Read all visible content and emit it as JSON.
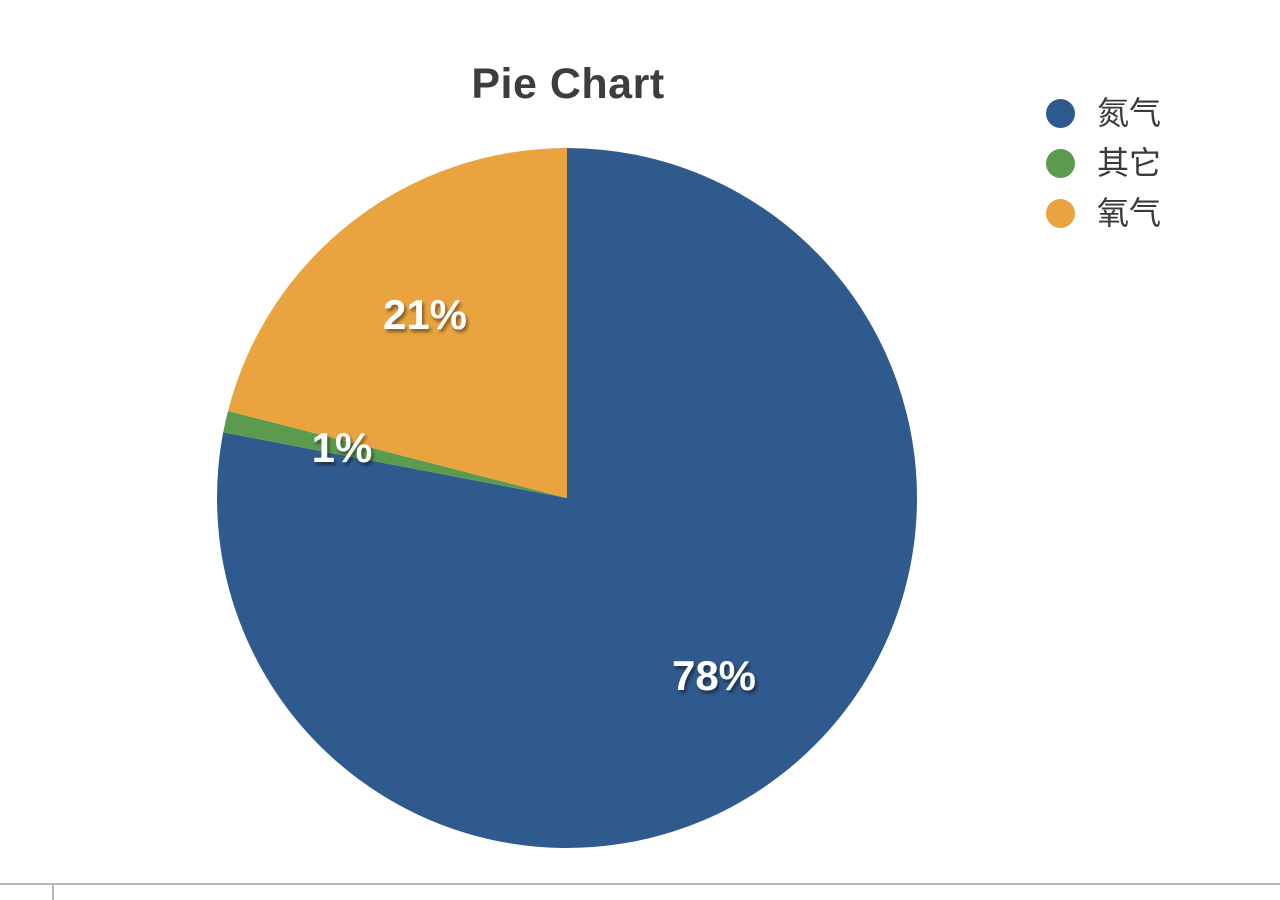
{
  "chart_data": {
    "type": "pie",
    "title": "Pie Chart",
    "categories": [
      "氮气",
      "其它",
      "氧气"
    ],
    "values": [
      78,
      1,
      21
    ],
    "unit": "percent",
    "start_angle_deg": 0,
    "direction": "clockwise",
    "legend_position": "top-right",
    "slice_labels": "percent",
    "series": [
      {
        "key": "nitrogen",
        "label": "氮气",
        "value": 78,
        "display_label": "78%",
        "color": "#2F5A8E"
      },
      {
        "key": "other",
        "label": "其它",
        "value": 1,
        "display_label": "1%",
        "color": "#5A9B4E"
      },
      {
        "key": "oxygen",
        "label": "氧气",
        "value": 21,
        "display_label": "21%",
        "color": "#E9A440"
      }
    ],
    "slice_label_color": "#ffffff",
    "title_color": "#3d3d3d",
    "legend_text_color": "#3a3a3a"
  },
  "footer": {
    "partial_next_chart": {
      "axis_line_color": "#b9b9b9"
    }
  }
}
